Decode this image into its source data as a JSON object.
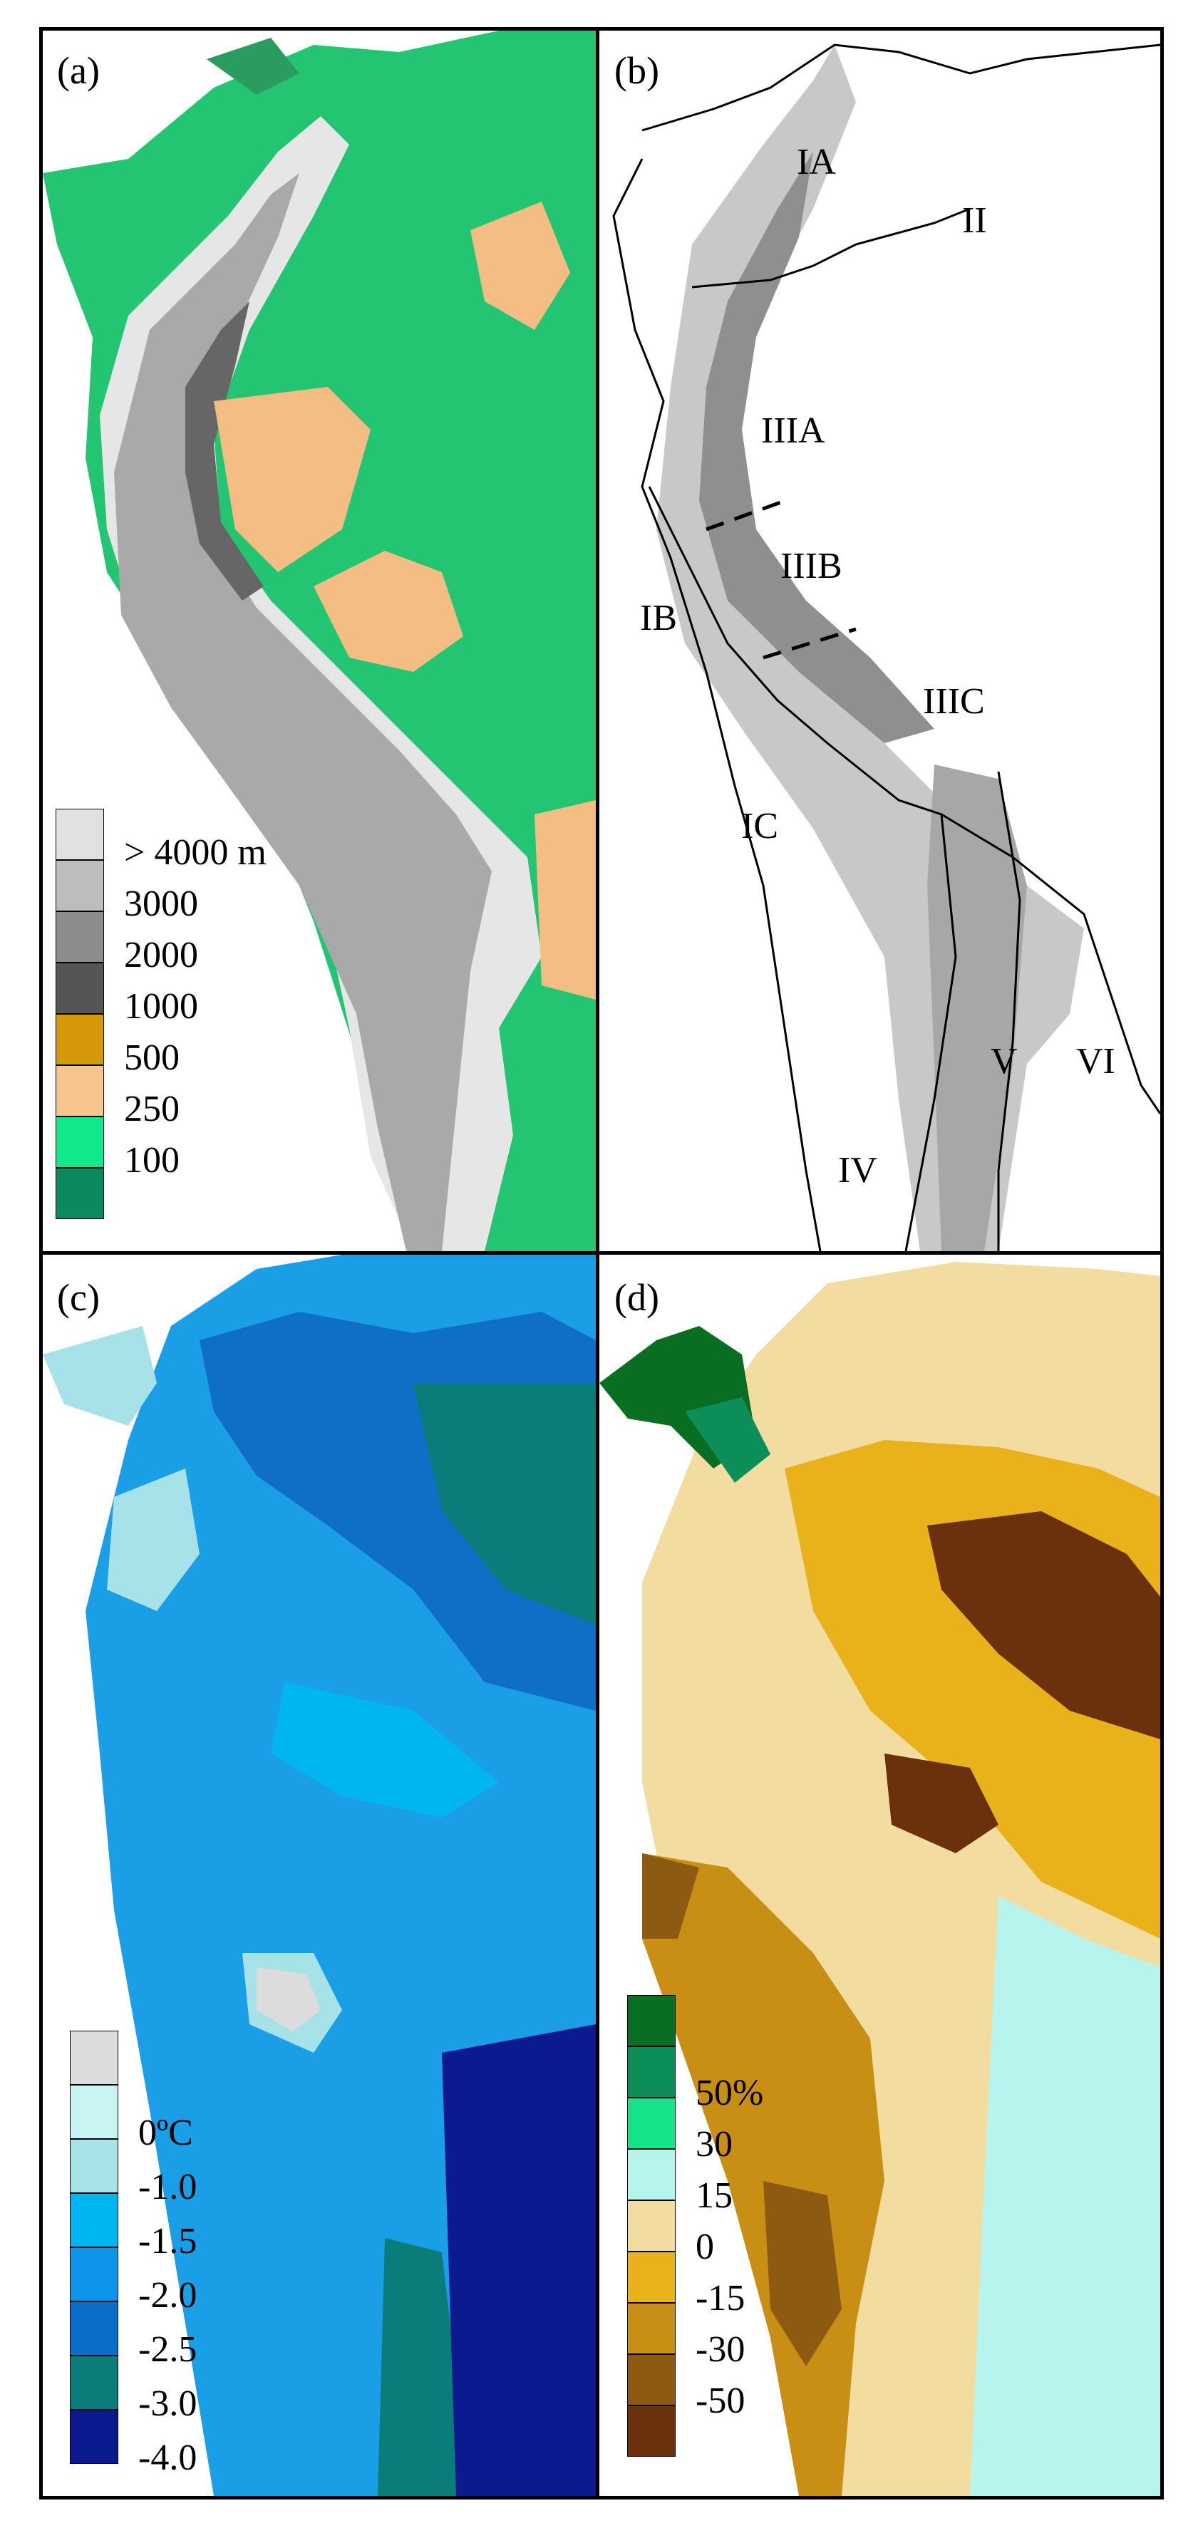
{
  "panels": {
    "a": {
      "label": "(a)",
      "legend": [
        {
          "label": "> 4000 m",
          "color": "#e1e1e1"
        },
        {
          "label": "3000",
          "color": "#bdbdbd"
        },
        {
          "label": "2000",
          "color": "#8c8c8c"
        },
        {
          "label": "1000",
          "color": "#555555"
        },
        {
          "label": "500",
          "color": "#d4980a"
        },
        {
          "label": "250",
          "color": "#f9c58e"
        },
        {
          "label": "100",
          "color": "#12e98a"
        },
        {
          "label": "",
          "color": "#0c8a5f"
        }
      ]
    },
    "b": {
      "label": "(b)",
      "regions": {
        "IA": "IA",
        "II": "II",
        "IIIA": "IIIA",
        "IIIB": "IIIB",
        "IB": "IB",
        "IIIC": "IIIC",
        "IC": "IC",
        "V": "V",
        "VI": "VI",
        "IV": "IV"
      }
    },
    "c": {
      "label": "(c)",
      "legend": [
        {
          "label": "",
          "color": "#dcdcdc"
        },
        {
          "label": "0ºC",
          "color": "#c9f4f4"
        },
        {
          "label": "-1.0",
          "color": "#a6e2e8"
        },
        {
          "label": "-1.5",
          "color": "#00b6f0"
        },
        {
          "label": "-2.0",
          "color": "#0c95ea"
        },
        {
          "label": "-2.5",
          "color": "#0b6ec8"
        },
        {
          "label": "-3.0",
          "color": "#0a7d7a"
        },
        {
          "label": "-4.0",
          "color": "#0b1a8e"
        }
      ]
    },
    "d": {
      "label": "(d)",
      "legend": [
        {
          "label": "",
          "color": "#0a6e22"
        },
        {
          "label": "50%",
          "color": "#0c8e58"
        },
        {
          "label": "30",
          "color": "#16e48a"
        },
        {
          "label": "15",
          "color": "#b8f4ee"
        },
        {
          "label": "0",
          "color": "#f2dca0"
        },
        {
          "label": "-15",
          "color": "#e9b21a"
        },
        {
          "label": "-30",
          "color": "#c98e14"
        },
        {
          "label": "-50",
          "color": "#8d5a12"
        },
        {
          "label": "",
          "color": "#6b300c"
        }
      ]
    }
  }
}
